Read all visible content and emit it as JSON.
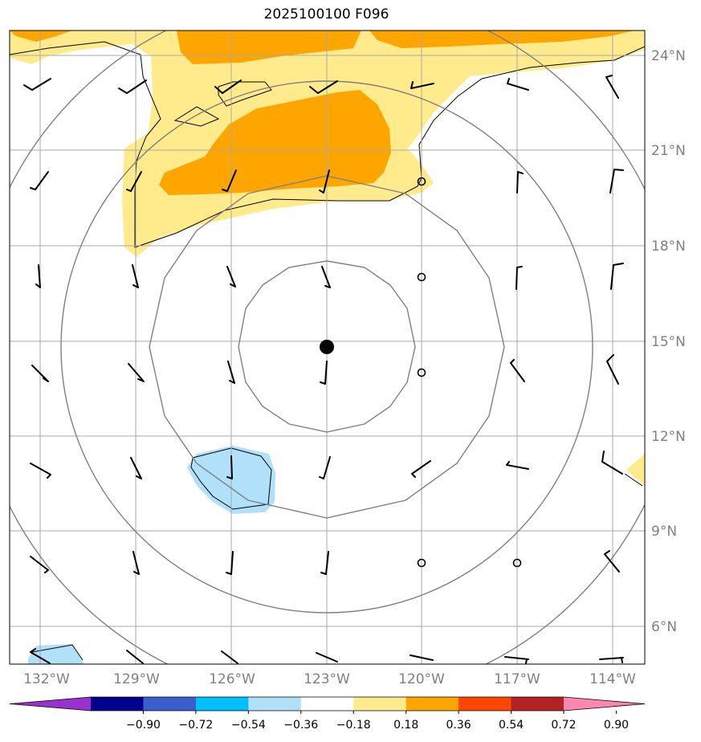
{
  "title": "2025100100 F096",
  "lon_ticks": [
    "132°W",
    "129°W",
    "126°W",
    "123°W",
    "120°W",
    "117°W",
    "114°W"
  ],
  "lat_ticks": [
    "24°N",
    "21°N",
    "18°N",
    "15°N",
    "12°N",
    "9°N",
    "6°N"
  ],
  "colorbar": {
    "labels": [
      "−0.90",
      "−0.72",
      "−0.54",
      "−0.36",
      "−0.18",
      "0.18",
      "0.36",
      "0.54",
      "0.72",
      "0.90"
    ],
    "colors": [
      "#9932cc",
      "#00008b",
      "#3a5fcd",
      "#00bfff",
      "#b0e0fa",
      "#ffffff",
      "#ffeb8c",
      "#ffa500",
      "#ff4500",
      "#b22222",
      "#ff86b0"
    ]
  },
  "colors": {
    "positive_light": "#ffeb8c",
    "positive_mid": "#ffa500",
    "negative_light": "#b0e0fa",
    "grid": "#a9a9a9",
    "range_rings": "#808080"
  },
  "storm_center": {
    "lon": -123.0,
    "lat": 14.8
  }
}
